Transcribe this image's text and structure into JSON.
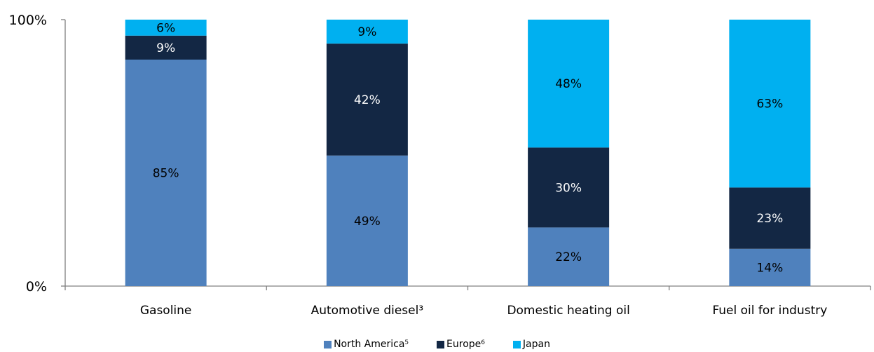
{
  "chart_data": {
    "type": "bar",
    "stacked": true,
    "categories": [
      "Gasoline",
      "Automotive diesel³",
      "Domestic heating oil",
      "Fuel oil for industry"
    ],
    "series": [
      {
        "name": "North America⁵",
        "values": [
          85,
          49,
          22,
          14
        ],
        "labels": [
          "85%",
          "49%",
          "22%",
          "14%"
        ],
        "color": "#4f81bd"
      },
      {
        "name": "Europe⁶",
        "values": [
          9,
          42,
          30,
          23
        ],
        "labels": [
          "9%",
          "42%",
          "30%",
          "23%"
        ],
        "color": "#132744"
      },
      {
        "name": "Japan",
        "values": [
          6,
          9,
          48,
          63
        ],
        "labels": [
          "6%",
          "9%",
          "48%",
          "63%"
        ],
        "color": "#00b0f0"
      }
    ],
    "ylim": [
      0,
      100
    ],
    "yticks": [
      "0%",
      "100%"
    ],
    "grid": false,
    "legend": "bottom-center",
    "title": "",
    "xlabel": "",
    "ylabel": ""
  }
}
